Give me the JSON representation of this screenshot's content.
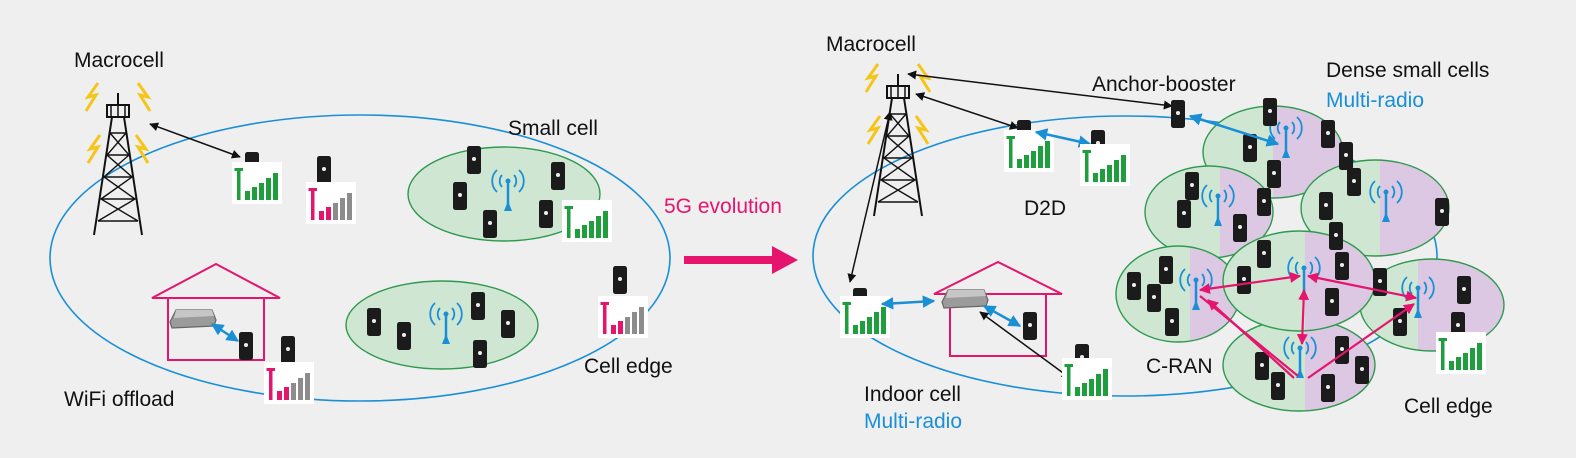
{
  "left": {
    "macrocell": "Macrocell",
    "small_cell": "Small cell",
    "wifi_offload": "WiFi offload",
    "cell_edge": "Cell edge"
  },
  "arrow": {
    "label": "5G evolution"
  },
  "right": {
    "macrocell": "Macrocell",
    "anchor_booster": "Anchor-booster",
    "dense_small_cells": "Dense small cells",
    "dense_multi_radio": "Multi-radio",
    "d2d": "D2D",
    "indoor_cell": "Indoor cell",
    "indoor_multi_radio": "Multi-radio",
    "c_ran": "C-RAN",
    "cell_edge": "Cell edge"
  },
  "colors": {
    "cell_border": "#1a8fd6",
    "small_cell_fill": "#cfe6d3",
    "dense_cell_purple": "#ddc8e4",
    "signal_good": "#1e9e3c",
    "signal_weak": "#e5156e",
    "signal_gray": "#8c8c8c",
    "evolution_arrow": "#e5156e",
    "c_ran_links": "#e5156e",
    "link_blue": "#1a8fd6",
    "link_black": "#111111"
  }
}
